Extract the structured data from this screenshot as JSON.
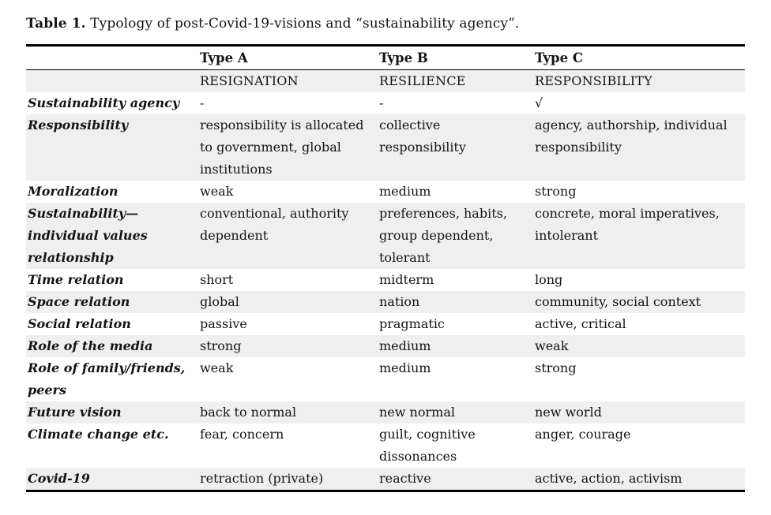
{
  "page": {
    "caption_label": "Table 1.",
    "caption_text": "Typology of post-Covid-19-visions and “sustainability agency”."
  },
  "colors": {
    "shaded_row": "#efefef",
    "rule": "#000000",
    "text": "#141414"
  },
  "table": {
    "header": {
      "label": "",
      "type_a": "Type A",
      "type_b": "Type B",
      "type_c": "Type C"
    },
    "subheader": {
      "label": "",
      "type_a": "RESIGNATION",
      "type_b": "RESILIENCE",
      "type_c": "RESPONSIBILITY"
    },
    "rows": [
      {
        "label": "Sustainability agency",
        "a": "-",
        "b": "-",
        "c": "√"
      },
      {
        "label": "Responsibility",
        "a": "responsibility is allocated to government, global institutions",
        "b": "collective responsibility",
        "c": "agency, authorship, individual responsibility"
      },
      {
        "label": "Moralization",
        "a": "weak",
        "b": "medium",
        "c": "strong"
      },
      {
        "label": "Sustainability—individual values relationship",
        "a": "conventional, authority dependent",
        "b": "preferences, habits, group dependent, tolerant",
        "c": "concrete, moral imperatives, intolerant"
      },
      {
        "label": "Time relation",
        "a": "short",
        "b": "midterm",
        "c": "long"
      },
      {
        "label": "Space relation",
        "a": "global",
        "b": "nation",
        "c": "community, social context"
      },
      {
        "label": "Social relation",
        "a": "passive",
        "b": "pragmatic",
        "c": "active, critical"
      },
      {
        "label": "Role of the media",
        "a": "strong",
        "b": "medium",
        "c": "weak"
      },
      {
        "label": "Role of family/friends, peers",
        "a": "weak",
        "b": "medium",
        "c": "strong"
      },
      {
        "label": "Future vision",
        "a": "back to normal",
        "b": "new normal",
        "c": "new world"
      },
      {
        "label": "Climate change etc.",
        "a": "fear, concern",
        "b": "guilt, cognitive dissonances",
        "c": "anger, courage"
      },
      {
        "label": "Covid-19",
        "a": "retraction (private)",
        "b": "reactive",
        "c": "active, action, activism"
      }
    ]
  }
}
